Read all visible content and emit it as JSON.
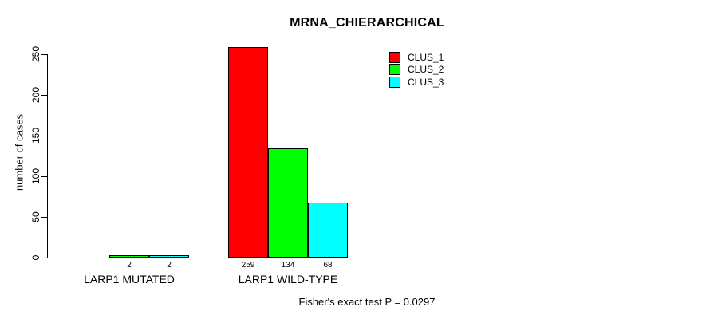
{
  "chart_data": {
    "type": "bar",
    "title": "MRNA_CHIERARCHICAL",
    "xlabel": "",
    "ylabel": "number of cases",
    "ylim": [
      0,
      250
    ],
    "yticks": [
      0,
      50,
      100,
      150,
      200,
      250
    ],
    "grid": false,
    "legend_position": "top-right",
    "categories": [
      "LARP1 MUTATED",
      "LARP1 WILD-TYPE"
    ],
    "series": [
      {
        "name": "CLUS_1",
        "color": "#ff0000",
        "values": [
          0,
          259
        ]
      },
      {
        "name": "CLUS_2",
        "color": "#00ff00",
        "values": [
          2,
          134
        ]
      },
      {
        "name": "CLUS_3",
        "color": "#00ffff",
        "values": [
          2,
          68
        ]
      }
    ],
    "bar_labels": [
      [
        "",
        "2",
        "2"
      ],
      [
        "259",
        "134",
        "68"
      ]
    ],
    "annotation": "Fisher's exact test P = 0.0297"
  }
}
